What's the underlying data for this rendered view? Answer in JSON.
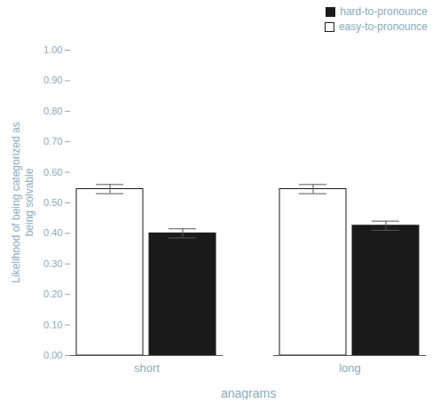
{
  "chart_data": {
    "type": "bar",
    "categories": [
      "short",
      "long"
    ],
    "series": [
      {
        "name": "easy-to-pronounce",
        "color": "#ffffff",
        "values": [
          0.545,
          0.545
        ],
        "errors": [
          0.015,
          0.015
        ]
      },
      {
        "name": "hard-to-pronounce",
        "color": "#1a1a1a",
        "values": [
          0.4,
          0.425
        ],
        "errors": [
          0.015,
          0.015
        ]
      }
    ],
    "xlabel": "anagrams",
    "ylabel": "Likelihood of being categorized as\nbeing solvable",
    "ylim": [
      0.0,
      1.0
    ],
    "yticks": [
      {
        "value": 0.0,
        "label": "0.00"
      },
      {
        "value": 0.1,
        "label": "0.10"
      },
      {
        "value": 0.2,
        "label": "0.20"
      },
      {
        "value": 0.3,
        "label": "0.30"
      },
      {
        "value": 0.4,
        "label": "0.40"
      },
      {
        "value": 0.5,
        "label": "0.50"
      },
      {
        "value": 0.6,
        "label": "0.60"
      },
      {
        "value": 0.7,
        "label": "0.70"
      },
      {
        "value": 0.8,
        "label": "0.80"
      },
      {
        "value": 0.9,
        "label": "0.90"
      },
      {
        "value": 1.0,
        "label": "1.00"
      }
    ],
    "legend": "upper right",
    "grid": false
  }
}
